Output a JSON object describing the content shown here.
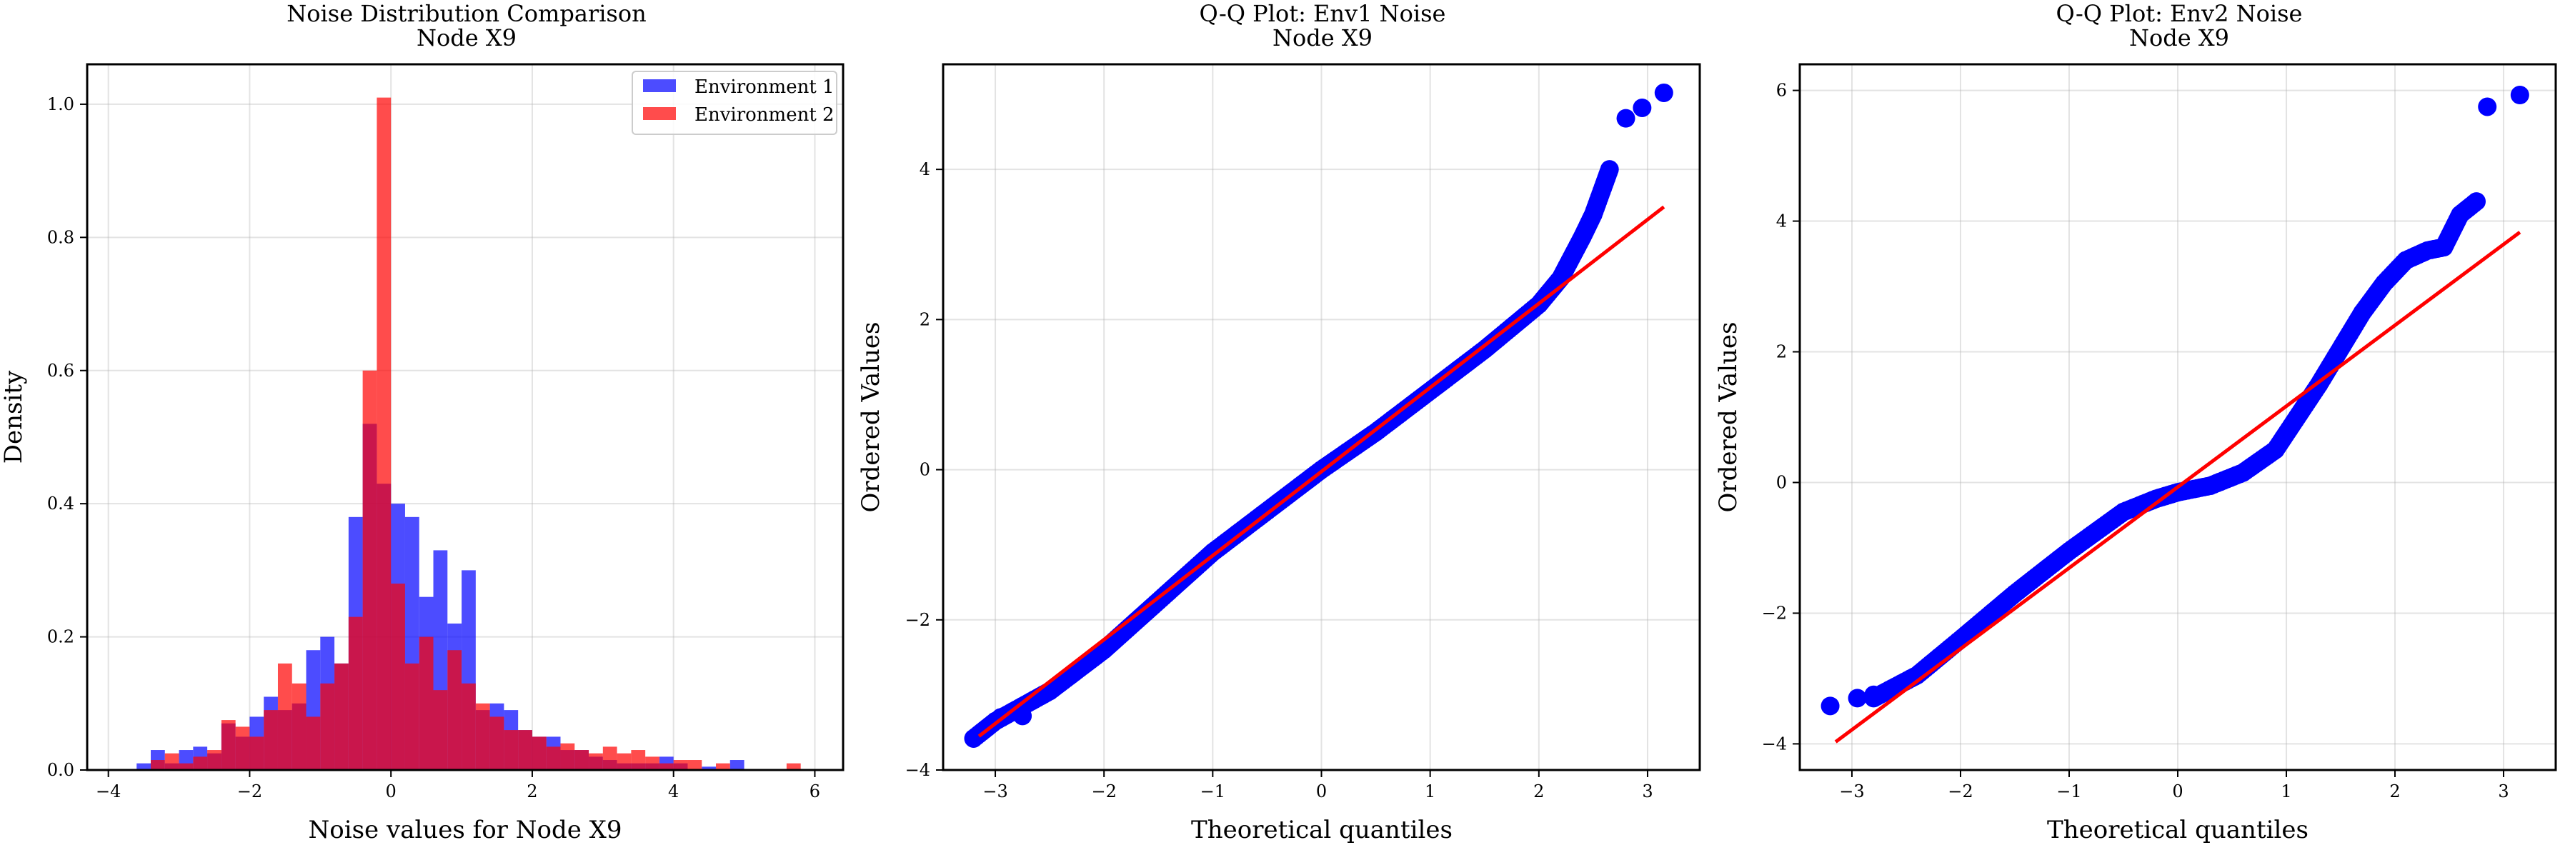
{
  "chart_data": [
    {
      "type": "histogram",
      "title": "Noise Distribution Comparison",
      "subtitle": "Node X9",
      "xlabel": "Noise values for Node X9",
      "ylabel": "Density",
      "xlim": [
        -4.3,
        6.4
      ],
      "ylim": [
        0,
        1.06
      ],
      "xticks": [
        -4,
        -2,
        0,
        2,
        4,
        6
      ],
      "yticks": [
        0.0,
        0.2,
        0.4,
        0.6,
        0.8,
        1.0
      ],
      "grid": true,
      "legend_position": "top-right",
      "bin_width": 0.2,
      "series": [
        {
          "name": "Environment 1",
          "color": "#0000ff",
          "alpha": 0.7,
          "bins": [
            [
              -3.6,
              0.01
            ],
            [
              -3.4,
              0.03
            ],
            [
              -3.2,
              0.01
            ],
            [
              -3.0,
              0.03
            ],
            [
              -2.8,
              0.035
            ],
            [
              -2.6,
              0.025
            ],
            [
              -2.4,
              0.07
            ],
            [
              -2.2,
              0.05
            ],
            [
              -2.0,
              0.08
            ],
            [
              -1.8,
              0.11
            ],
            [
              -1.6,
              0.09
            ],
            [
              -1.4,
              0.1
            ],
            [
              -1.2,
              0.18
            ],
            [
              -1.0,
              0.2
            ],
            [
              -0.8,
              0.16
            ],
            [
              -0.6,
              0.38
            ],
            [
              -0.4,
              0.52
            ],
            [
              -0.2,
              0.43
            ],
            [
              0.0,
              0.4
            ],
            [
              0.2,
              0.38
            ],
            [
              0.4,
              0.26
            ],
            [
              0.6,
              0.33
            ],
            [
              0.8,
              0.22
            ],
            [
              1.0,
              0.3
            ],
            [
              1.2,
              0.09
            ],
            [
              1.4,
              0.1
            ],
            [
              1.6,
              0.09
            ],
            [
              1.8,
              0.06
            ],
            [
              2.0,
              0.05
            ],
            [
              2.2,
              0.05
            ],
            [
              2.4,
              0.03
            ],
            [
              2.6,
              0.03
            ],
            [
              2.8,
              0.02
            ],
            [
              3.0,
              0.015
            ],
            [
              3.2,
              0.01
            ],
            [
              3.4,
              0.01
            ],
            [
              3.6,
              0.01
            ],
            [
              3.8,
              0.02
            ],
            [
              4.0,
              0.01
            ],
            [
              4.2,
              0.0
            ],
            [
              4.4,
              0.005
            ],
            [
              4.8,
              0.015
            ]
          ]
        },
        {
          "name": "Environment 2",
          "color": "#ff0000",
          "alpha": 0.7,
          "bins": [
            [
              -3.4,
              0.015
            ],
            [
              -3.2,
              0.025
            ],
            [
              -3.0,
              0.01
            ],
            [
              -2.8,
              0.02
            ],
            [
              -2.6,
              0.03
            ],
            [
              -2.4,
              0.075
            ],
            [
              -2.2,
              0.065
            ],
            [
              -2.0,
              0.05
            ],
            [
              -1.8,
              0.09
            ],
            [
              -1.6,
              0.16
            ],
            [
              -1.4,
              0.13
            ],
            [
              -1.2,
              0.08
            ],
            [
              -1.0,
              0.13
            ],
            [
              -0.8,
              0.16
            ],
            [
              -0.6,
              0.23
            ],
            [
              -0.4,
              0.6
            ],
            [
              -0.2,
              1.01
            ],
            [
              0.0,
              0.28
            ],
            [
              0.2,
              0.16
            ],
            [
              0.4,
              0.2
            ],
            [
              0.6,
              0.12
            ],
            [
              0.8,
              0.18
            ],
            [
              1.0,
              0.13
            ],
            [
              1.2,
              0.1
            ],
            [
              1.4,
              0.08
            ],
            [
              1.6,
              0.06
            ],
            [
              1.8,
              0.06
            ],
            [
              2.0,
              0.05
            ],
            [
              2.2,
              0.035
            ],
            [
              2.4,
              0.04
            ],
            [
              2.6,
              0.03
            ],
            [
              2.8,
              0.025
            ],
            [
              3.0,
              0.035
            ],
            [
              3.2,
              0.025
            ],
            [
              3.4,
              0.03
            ],
            [
              3.6,
              0.02
            ],
            [
              3.8,
              0.01
            ],
            [
              4.0,
              0.015
            ],
            [
              4.2,
              0.015
            ],
            [
              4.6,
              0.01
            ],
            [
              5.6,
              0.01
            ]
          ]
        }
      ]
    },
    {
      "type": "scatter",
      "title": "Q-Q Plot: Env1 Noise",
      "subtitle": "Node X9",
      "xlabel": "Theoretical quantiles",
      "ylabel": "Ordered Values",
      "xlim": [
        -3.48,
        3.48
      ],
      "ylim": [
        -4.0,
        5.4
      ],
      "xticks": [
        -3,
        -2,
        -1,
        0,
        1,
        2,
        3
      ],
      "yticks": [
        -4,
        -2,
        0,
        2,
        4
      ],
      "grid": true,
      "point_color": "#0000ff",
      "line_color": "#ff0000",
      "fit_line": {
        "x": [
          -3.15,
          3.15
        ],
        "y": [
          -3.55,
          3.5
        ]
      },
      "quantile_curve": [
        [
          -3.2,
          -3.58
        ],
        [
          -3.0,
          -3.35
        ],
        [
          -2.5,
          -2.95
        ],
        [
          -2.0,
          -2.4
        ],
        [
          -1.5,
          -1.75
        ],
        [
          -1.0,
          -1.1
        ],
        [
          -0.5,
          -0.55
        ],
        [
          0.0,
          0.0
        ],
        [
          0.5,
          0.5
        ],
        [
          1.0,
          1.05
        ],
        [
          1.5,
          1.6
        ],
        [
          2.0,
          2.2
        ],
        [
          2.2,
          2.55
        ],
        [
          2.4,
          3.1
        ],
        [
          2.5,
          3.4
        ],
        [
          2.6,
          3.8
        ],
        [
          2.65,
          4.0
        ]
      ],
      "extreme_points": [
        [
          -3.2,
          -3.58
        ],
        [
          -2.95,
          -3.3
        ],
        [
          -2.75,
          -3.28
        ],
        [
          2.8,
          4.68
        ],
        [
          2.95,
          4.82
        ],
        [
          3.15,
          5.02
        ]
      ]
    },
    {
      "type": "scatter",
      "title": "Q-Q Plot: Env2 Noise",
      "subtitle": "Node X9",
      "xlabel": "Theoretical quantiles",
      "ylabel": "Ordered Values",
      "xlim": [
        -3.48,
        3.48
      ],
      "ylim": [
        -4.4,
        6.4
      ],
      "xticks": [
        -3,
        -2,
        -1,
        0,
        1,
        2,
        3
      ],
      "yticks": [
        -4,
        -2,
        0,
        2,
        4,
        6
      ],
      "grid": true,
      "point_color": "#0000ff",
      "line_color": "#ff0000",
      "fit_line": {
        "x": [
          -3.15,
          3.15
        ],
        "y": [
          -3.97,
          3.83
        ]
      },
      "quantile_curve": [
        [
          -2.8,
          -3.3
        ],
        [
          -2.4,
          -2.95
        ],
        [
          -2.0,
          -2.4
        ],
        [
          -1.5,
          -1.7
        ],
        [
          -1.0,
          -1.05
        ],
        [
          -0.5,
          -0.45
        ],
        [
          -0.2,
          -0.25
        ],
        [
          0.0,
          -0.15
        ],
        [
          0.3,
          -0.05
        ],
        [
          0.6,
          0.15
        ],
        [
          0.9,
          0.5
        ],
        [
          1.1,
          1.0
        ],
        [
          1.3,
          1.5
        ],
        [
          1.5,
          2.05
        ],
        [
          1.7,
          2.6
        ],
        [
          1.9,
          3.05
        ],
        [
          2.1,
          3.4
        ],
        [
          2.3,
          3.55
        ],
        [
          2.45,
          3.6
        ],
        [
          2.6,
          4.1
        ],
        [
          2.75,
          4.3
        ]
      ],
      "extreme_points": [
        [
          -3.2,
          -3.42
        ],
        [
          -2.95,
          -3.3
        ],
        [
          -2.8,
          -3.25
        ],
        [
          2.85,
          5.75
        ],
        [
          3.15,
          5.93
        ]
      ]
    }
  ]
}
